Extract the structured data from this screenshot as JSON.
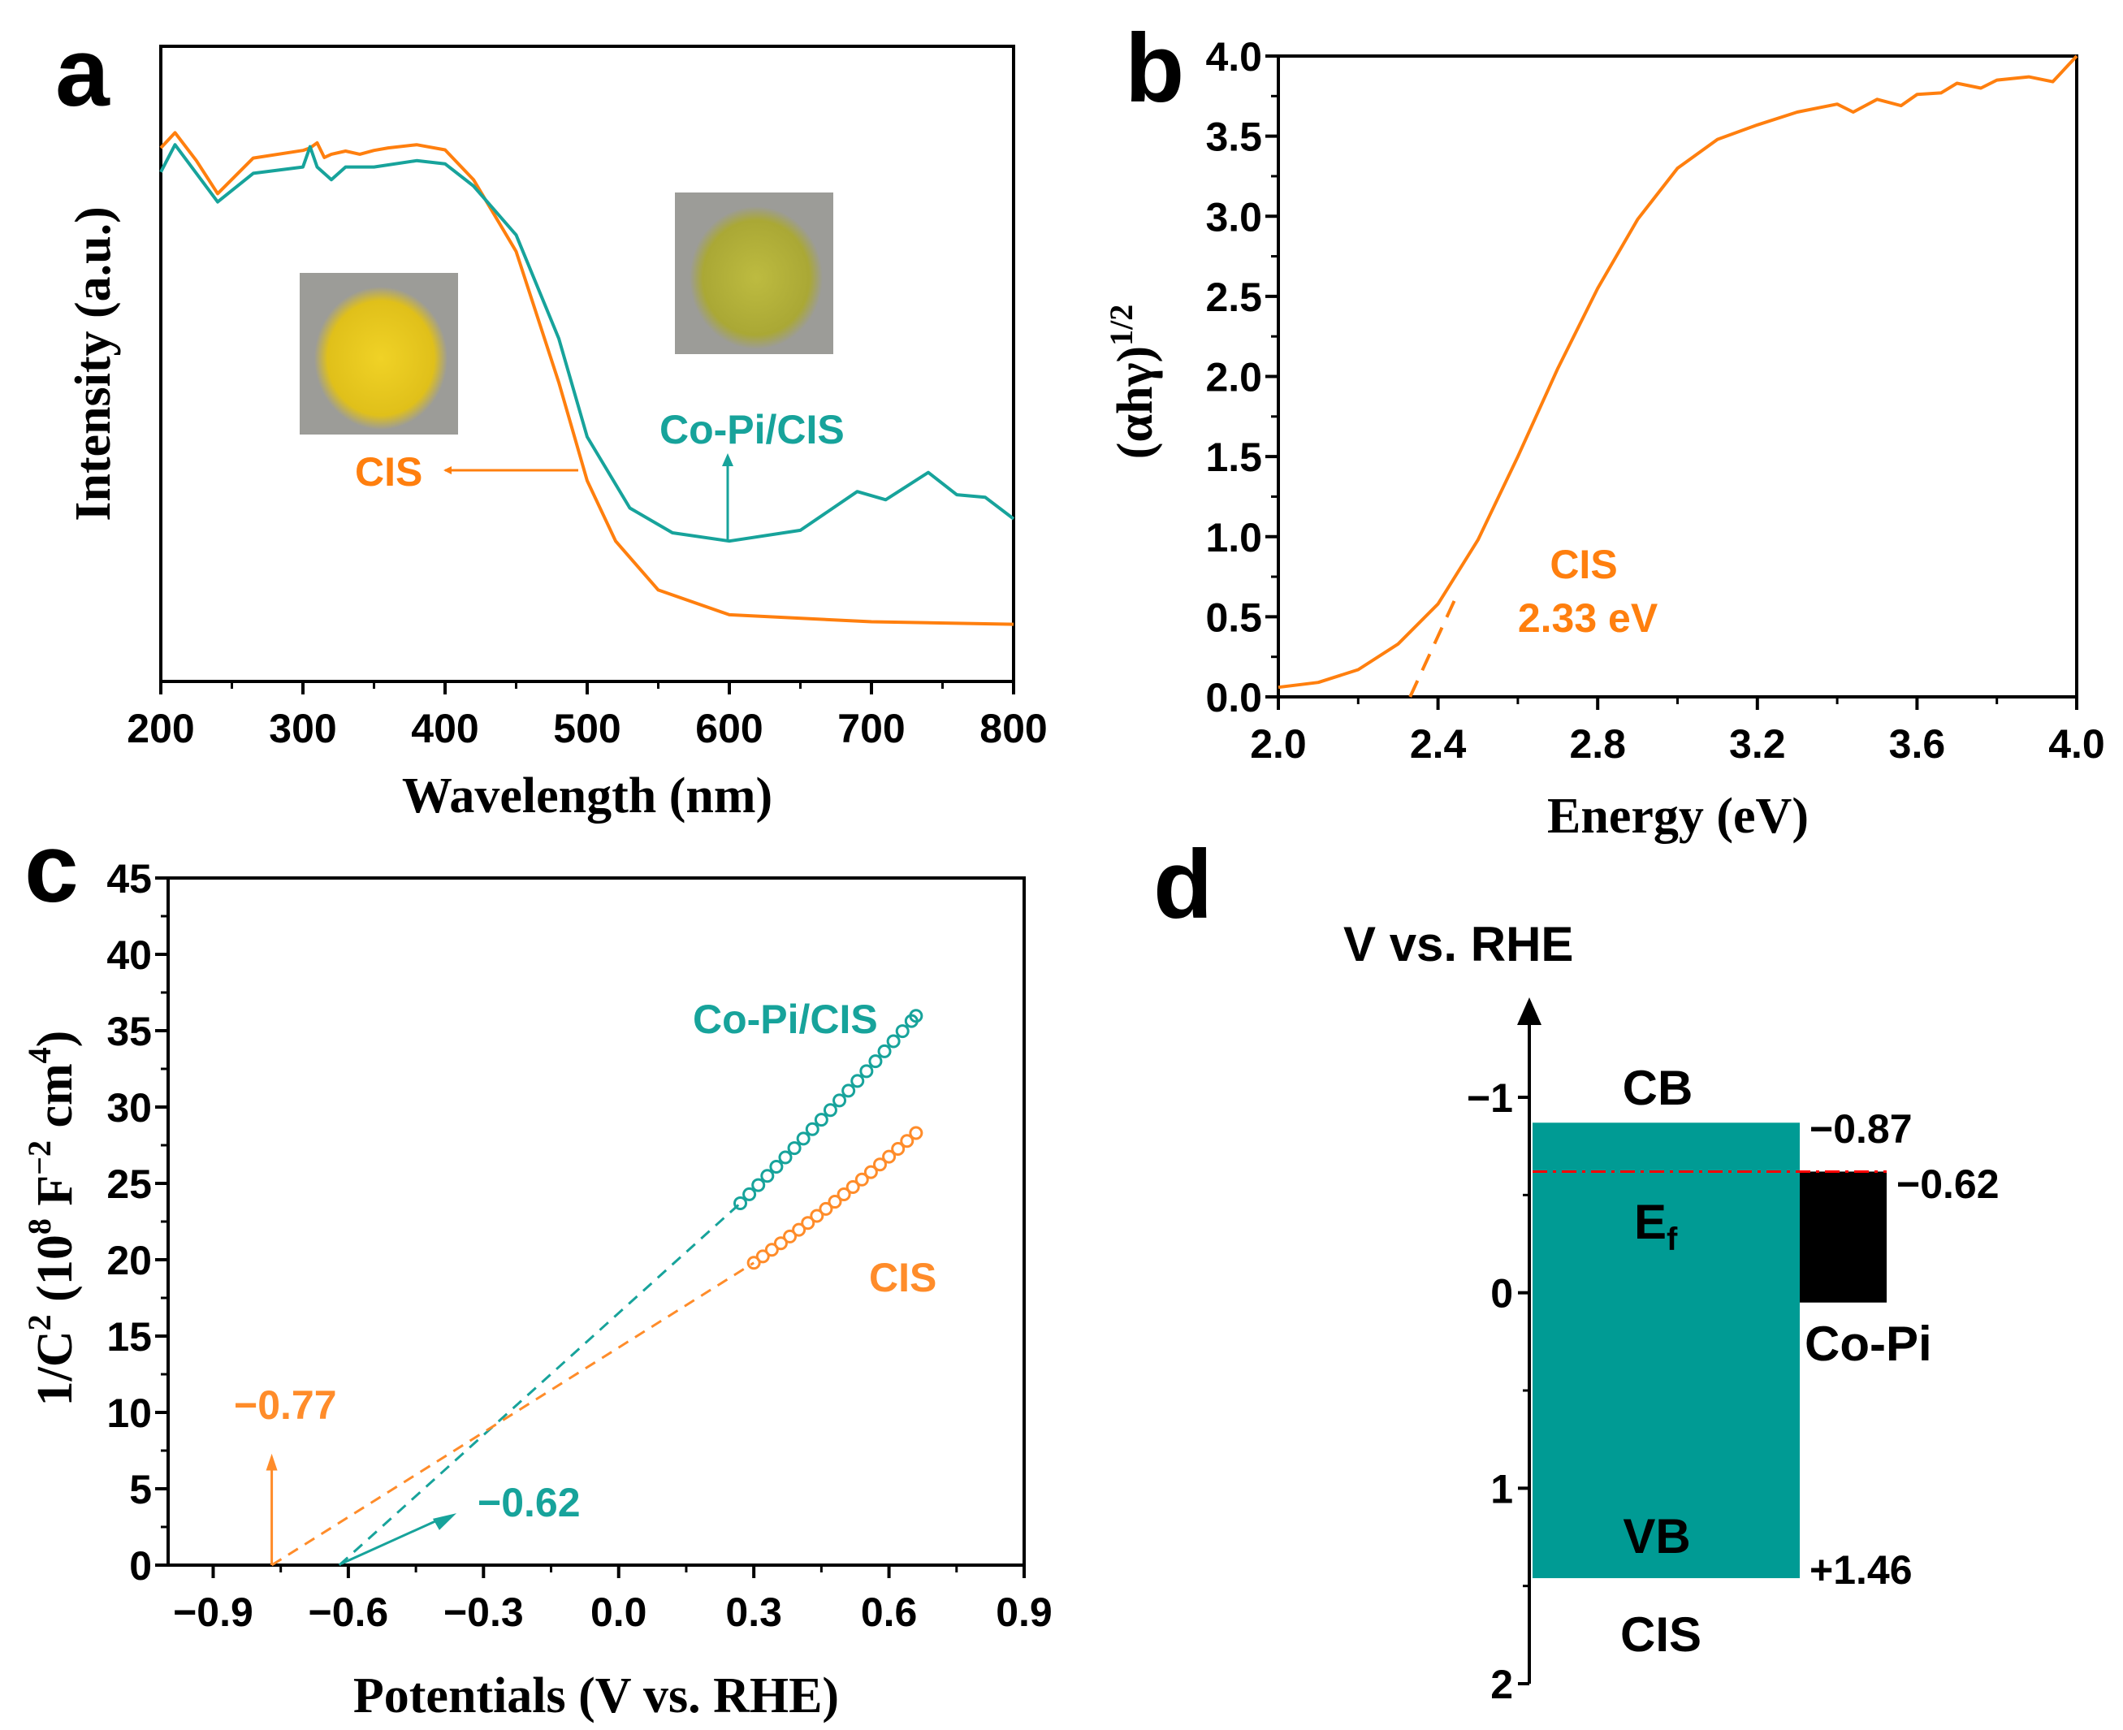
{
  "figure": {
    "panel_labels": {
      "a": "a",
      "b": "b",
      "c": "c",
      "d": "d"
    }
  },
  "chart_data": [
    {
      "panel": "a",
      "type": "line",
      "xlabel": "Wavelength (nm)",
      "ylabel": "Intensity (a.u.)",
      "xlim": [
        200,
        800
      ],
      "ylim": [
        0,
        1
      ],
      "y_tick_labels_shown": false,
      "xtick_labels": [
        "200",
        "300",
        "400",
        "500",
        "600",
        "700",
        "800"
      ],
      "grid": false,
      "series": [
        {
          "name": "CIS",
          "color": "#FF7F0E",
          "x": [
            200,
            210,
            225,
            240,
            265,
            300,
            305,
            310,
            315,
            320,
            330,
            340,
            350,
            360,
            380,
            400,
            420,
            450,
            480,
            500,
            520,
            550,
            600,
            700,
            800
          ],
          "y": [
            0.84,
            0.864,
            0.82,
            0.768,
            0.824,
            0.836,
            0.84,
            0.848,
            0.825,
            0.83,
            0.835,
            0.83,
            0.836,
            0.84,
            0.845,
            0.837,
            0.79,
            0.677,
            0.471,
            0.316,
            0.221,
            0.144,
            0.105,
            0.094,
            0.09
          ]
        },
        {
          "name": "Co-Pi/CIS",
          "color": "#17A39B",
          "x": [
            200,
            210,
            225,
            240,
            265,
            300,
            305,
            310,
            320,
            330,
            350,
            380,
            400,
            420,
            450,
            480,
            500,
            530,
            560,
            600,
            650,
            690,
            710,
            740,
            760,
            780,
            800
          ],
          "y": [
            0.802,
            0.845,
            0.8,
            0.755,
            0.8,
            0.81,
            0.842,
            0.81,
            0.79,
            0.81,
            0.81,
            0.82,
            0.815,
            0.78,
            0.703,
            0.54,
            0.385,
            0.273,
            0.234,
            0.221,
            0.238,
            0.299,
            0.286,
            0.329,
            0.294,
            0.29,
            0.256
          ]
        }
      ],
      "annotations": {
        "cis_label": "CIS",
        "copi_label": "Co-Pi/CIS"
      },
      "inset_colors": {
        "cis_powder": "#E5C81C",
        "copi_powder": "#B5B33A",
        "background": "#9C9C98"
      }
    },
    {
      "panel": "b",
      "type": "line",
      "xlabel": "Energy (eV)",
      "ylabel_main": "(αhγ)",
      "ylabel_sup": "1/2",
      "xlim": [
        2.0,
        4.0
      ],
      "ylim": [
        0.0,
        4.0
      ],
      "xtick_labels": [
        "2.0",
        "2.4",
        "2.8",
        "3.2",
        "3.6",
        "4.0"
      ],
      "ytick_labels": [
        "0.0",
        "0.5",
        "1.0",
        "1.5",
        "2.0",
        "2.5",
        "3.0",
        "3.5",
        "4.0"
      ],
      "grid": false,
      "series": [
        {
          "name": "CIS",
          "color": "#FF7F0E",
          "x": [
            2.0,
            2.1,
            2.2,
            2.3,
            2.4,
            2.5,
            2.6,
            2.7,
            2.8,
            2.9,
            3.0,
            3.1,
            3.2,
            3.3,
            3.4,
            3.44,
            3.5,
            3.56,
            3.6,
            3.66,
            3.7,
            3.76,
            3.8,
            3.88,
            3.94,
            4.0
          ],
          "y": [
            0.06,
            0.09,
            0.17,
            0.33,
            0.58,
            0.98,
            1.5,
            2.05,
            2.55,
            2.98,
            3.3,
            3.48,
            3.57,
            3.65,
            3.7,
            3.65,
            3.73,
            3.69,
            3.76,
            3.77,
            3.83,
            3.8,
            3.85,
            3.87,
            3.84,
            4.0
          ]
        }
      ],
      "tangent": {
        "x": [
          2.33,
          2.45
        ],
        "y": [
          0,
          0.65
        ],
        "style": "dashed"
      },
      "annotations": {
        "label": "CIS",
        "value": "2.33 eV"
      }
    },
    {
      "panel": "c",
      "type": "scatter",
      "xlabel": "Potentials (V vs. RHE)",
      "ylabel_parts": [
        {
          "t": "1/C"
        },
        {
          "t": "2",
          "sup": true
        },
        {
          "t": " (10"
        },
        {
          "t": "8",
          "sup": true
        },
        {
          "t": " F"
        },
        {
          "t": "−2",
          "sup": true
        },
        {
          "t": " cm"
        },
        {
          "t": "4",
          "sup": true
        },
        {
          "t": ")"
        }
      ],
      "xlim": [
        -1.0,
        0.9
      ],
      "ylim": [
        0,
        45
      ],
      "xtick_labels": [
        "−0.9",
        "−0.6",
        "−0.3",
        "0.0",
        "0.3",
        "0.6",
        "0.9"
      ],
      "ytick_labels": [
        "0",
        "5",
        "10",
        "15",
        "20",
        "25",
        "30",
        "35",
        "40",
        "45"
      ],
      "grid": false,
      "series": [
        {
          "name": "Co-Pi/CIS",
          "color": "#17A39B",
          "x": [
            0.27,
            0.29,
            0.31,
            0.33,
            0.35,
            0.37,
            0.39,
            0.41,
            0.43,
            0.45,
            0.47,
            0.49,
            0.51,
            0.53,
            0.55,
            0.57,
            0.59,
            0.61,
            0.63,
            0.65,
            0.66
          ],
          "y": [
            23.7,
            24.29,
            24.89,
            25.49,
            26.09,
            26.7,
            27.31,
            27.93,
            28.55,
            29.17,
            29.8,
            30.43,
            31.07,
            31.71,
            32.35,
            33.0,
            33.65,
            34.31,
            34.97,
            35.63,
            35.97
          ],
          "fit_intercept_x": -0.62
        },
        {
          "name": "CIS",
          "color": "#FF8C2A",
          "x": [
            0.3,
            0.32,
            0.34,
            0.36,
            0.38,
            0.4,
            0.42,
            0.44,
            0.46,
            0.48,
            0.5,
            0.52,
            0.54,
            0.56,
            0.58,
            0.6,
            0.62,
            0.64,
            0.66
          ],
          "y": [
            19.8,
            20.22,
            20.65,
            21.08,
            21.52,
            21.96,
            22.41,
            22.87,
            23.33,
            23.8,
            24.28,
            24.76,
            25.25,
            25.74,
            26.24,
            26.75,
            27.26,
            27.78,
            28.3
          ],
          "fit_intercept_x": -0.77
        }
      ],
      "annotations": {
        "copi_label": "Co-Pi/CIS",
        "cis_label": "CIS",
        "cis_intercept": "−0.77",
        "copi_intercept": "−0.62"
      }
    },
    {
      "panel": "d",
      "type": "band-diagram",
      "axis_title": "V vs. RHE",
      "ylim": [
        -1.5,
        2
      ],
      "ytick_labels": [
        "−1",
        "0",
        "1",
        "2"
      ],
      "cis": {
        "cb": -0.87,
        "vb": 1.46,
        "color": "#009B94",
        "cb_label": "CB",
        "vb_label": "VB",
        "name": "CIS",
        "cb_value": "−0.87",
        "vb_value": "+1.46"
      },
      "copi": {
        "top": -0.62,
        "bottom": 0.05,
        "color": "#000000",
        "name": "Co-Pi"
      },
      "fermi": {
        "value": -0.62,
        "label_main": "E",
        "label_sub": "f",
        "value_label": "−0.62",
        "color": "#FF0000",
        "style": "dash-dot"
      }
    }
  ]
}
